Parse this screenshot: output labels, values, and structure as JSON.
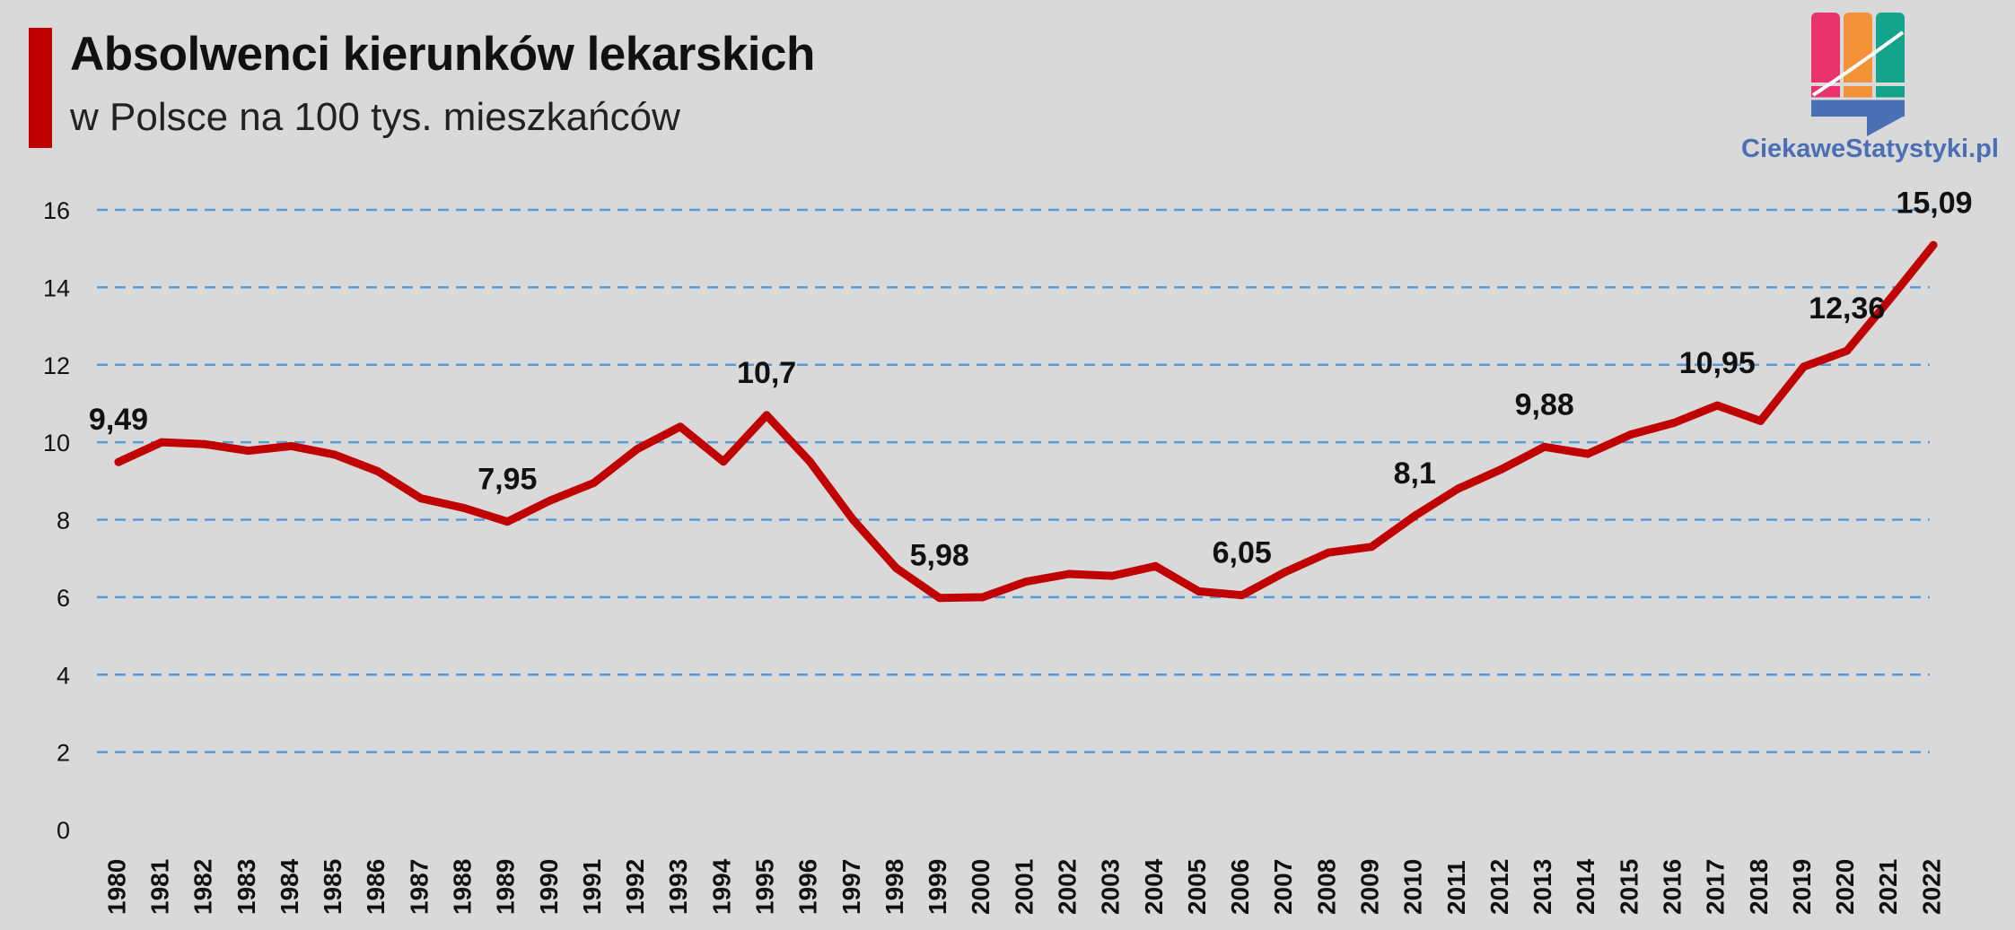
{
  "header": {
    "title": "Absolwenci kierunków lekarskich",
    "subtitle": "w Polsce na 100 tys. mieszkańców"
  },
  "logo": {
    "text": "CiekaweStatystyki.pl"
  },
  "colors": {
    "accent": "#c00000",
    "line": "#c00000",
    "grid": "#5b9bd5",
    "background": "#d9d9d9",
    "logo_pink": "#e8336d",
    "logo_orange": "#f39237",
    "logo_teal": "#14a38b",
    "logo_blue": "#4a6fb5"
  },
  "chart_data": {
    "type": "line",
    "title": "Absolwenci kierunków lekarskich",
    "subtitle": "w Polsce na 100 tys. mieszkańców",
    "xlabel": "",
    "ylabel": "",
    "ylim": [
      0,
      16
    ],
    "yticks": [
      0,
      2,
      4,
      6,
      8,
      10,
      12,
      14,
      16
    ],
    "grid": true,
    "legend": "none",
    "categories": [
      "1980",
      "1981",
      "1982",
      "1983",
      "1984",
      "1985",
      "1986",
      "1987",
      "1988",
      "1989",
      "1990",
      "1991",
      "1992",
      "1993",
      "1994",
      "1995",
      "1996",
      "1997",
      "1998",
      "1999",
      "2000",
      "2001",
      "2002",
      "2003",
      "2004",
      "2005",
      "2006",
      "2007",
      "2008",
      "2009",
      "2010",
      "2011",
      "2012",
      "2013",
      "2014",
      "2015",
      "2016",
      "2017",
      "2018",
      "2019",
      "2020",
      "2021",
      "2022"
    ],
    "series": [
      {
        "name": "Absolwenci na 100 tys. mieszkańców",
        "values": [
          9.49,
          10.0,
          9.95,
          9.78,
          9.9,
          9.68,
          9.25,
          8.55,
          8.3,
          7.95,
          8.5,
          8.95,
          9.82,
          10.4,
          9.5,
          10.7,
          9.5,
          8.0,
          6.75,
          5.98,
          6.0,
          6.4,
          6.6,
          6.55,
          6.8,
          6.15,
          6.05,
          6.65,
          7.15,
          7.3,
          8.1,
          8.8,
          9.3,
          9.88,
          9.7,
          10.2,
          10.5,
          10.95,
          10.55,
          11.95,
          12.36,
          13.7,
          15.09
        ]
      }
    ],
    "annotations": [
      {
        "x": "1980",
        "label": "9,49"
      },
      {
        "x": "1989",
        "label": "7,95"
      },
      {
        "x": "1995",
        "label": "10,7"
      },
      {
        "x": "1999",
        "label": "5,98"
      },
      {
        "x": "2006",
        "label": "6,05"
      },
      {
        "x": "2010",
        "label": "8,1"
      },
      {
        "x": "2013",
        "label": "9,88"
      },
      {
        "x": "2017",
        "label": "10,95"
      },
      {
        "x": "2020",
        "label": "12,36"
      },
      {
        "x": "2022",
        "label": "15,09"
      }
    ]
  }
}
